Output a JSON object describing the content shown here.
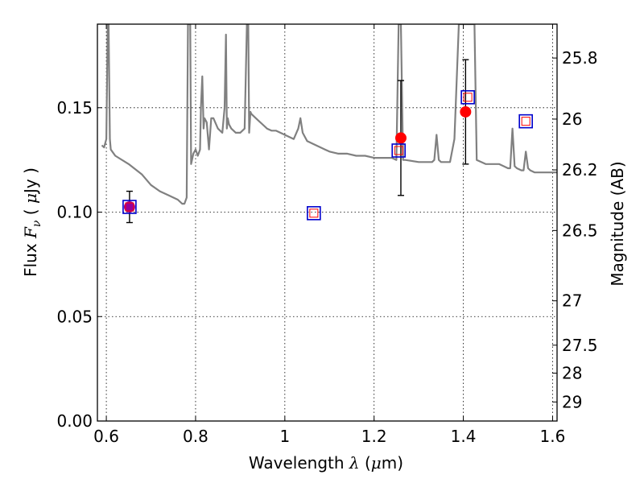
{
  "chart_data": {
    "type": "scatter",
    "xlabel": {
      "prefix": "Wavelength",
      "symbol": "λ",
      "unit_open": "(",
      "unit_mu": "μ",
      "unit_rest": "m)"
    },
    "ylabel": {
      "prefix": "Flux",
      "symbol": "F",
      "subscript": "ν",
      "unit_open": "(",
      "unit_mu": "μ",
      "unit_rest": "Jy )"
    },
    "y2label": "Magnitude (AB)",
    "xlim": [
      0.58,
      1.61
    ],
    "ylim": [
      0.0,
      0.19
    ],
    "grid": true,
    "x_ticks": [
      {
        "value": 0.6,
        "label": "0.6"
      },
      {
        "value": 0.8,
        "label": "0.8"
      },
      {
        "value": 1.0,
        "label": "1"
      },
      {
        "value": 1.2,
        "label": "1.2"
      },
      {
        "value": 1.4,
        "label": "1.4"
      },
      {
        "value": 1.6,
        "label": "1.6"
      }
    ],
    "y_ticks": [
      {
        "value": 0.0,
        "label": "0.00"
      },
      {
        "value": 0.05,
        "label": "0.05"
      },
      {
        "value": 0.1,
        "label": "0.10"
      },
      {
        "value": 0.15,
        "label": "0.15"
      }
    ],
    "y2_ticks": [
      {
        "mag": 25.8,
        "label": "25.8"
      },
      {
        "mag": 26.0,
        "label": "26"
      },
      {
        "mag": 26.2,
        "label": "26.2"
      },
      {
        "mag": 26.5,
        "label": "26.5"
      },
      {
        "mag": 27.0,
        "label": "27"
      },
      {
        "mag": 27.5,
        "label": "27.5"
      },
      {
        "mag": 28.0,
        "label": "28"
      },
      {
        "mag": 29.0,
        "label": "29"
      }
    ],
    "colors": {
      "model": "#808080",
      "observed": "#ff0000",
      "synthetic_edge": "#0000cc",
      "synthetic_inner": "#ff0000",
      "purple": "#990099",
      "errorbar": "#000000"
    },
    "model_spectrum": {
      "name": "",
      "x": [
        0.59,
        0.595,
        0.6,
        0.603,
        0.605,
        0.608,
        0.61,
        0.62,
        0.65,
        0.68,
        0.7,
        0.72,
        0.74,
        0.76,
        0.77,
        0.775,
        0.78,
        0.783,
        0.785,
        0.788,
        0.79,
        0.795,
        0.8,
        0.805,
        0.81,
        0.812,
        0.815,
        0.818,
        0.82,
        0.825,
        0.83,
        0.835,
        0.84,
        0.85,
        0.86,
        0.865,
        0.868,
        0.87,
        0.872,
        0.875,
        0.88,
        0.89,
        0.9,
        0.91,
        0.915,
        0.918,
        0.92,
        0.923,
        0.925,
        0.93,
        0.94,
        0.95,
        0.96,
        0.97,
        0.98,
        0.99,
        1.0,
        1.02,
        1.03,
        1.035,
        1.04,
        1.045,
        1.05,
        1.06,
        1.07,
        1.08,
        1.09,
        1.1,
        1.12,
        1.14,
        1.16,
        1.18,
        1.2,
        1.22,
        1.24,
        1.25,
        1.255,
        1.26,
        1.265,
        1.27,
        1.3,
        1.33,
        1.335,
        1.34,
        1.345,
        1.35,
        1.37,
        1.38,
        1.39,
        1.4,
        1.402,
        1.405,
        1.41,
        1.415,
        1.42,
        1.425,
        1.43,
        1.44,
        1.45,
        1.46,
        1.47,
        1.48,
        1.49,
        1.5,
        1.505,
        1.51,
        1.515,
        1.52,
        1.53,
        1.535,
        1.54,
        1.545,
        1.55,
        1.56,
        1.58,
        1.6,
        1.61
      ],
      "y": [
        0.132,
        0.131,
        0.135,
        0.19,
        0.19,
        0.135,
        0.13,
        0.127,
        0.123,
        0.118,
        0.113,
        0.11,
        0.108,
        0.106,
        0.104,
        0.104,
        0.107,
        0.19,
        0.19,
        0.19,
        0.123,
        0.128,
        0.13,
        0.127,
        0.13,
        0.15,
        0.165,
        0.14,
        0.145,
        0.143,
        0.13,
        0.145,
        0.145,
        0.14,
        0.138,
        0.15,
        0.185,
        0.14,
        0.145,
        0.142,
        0.14,
        0.138,
        0.138,
        0.14,
        0.19,
        0.19,
        0.138,
        0.148,
        0.147,
        0.146,
        0.144,
        0.142,
        0.14,
        0.139,
        0.139,
        0.138,
        0.137,
        0.135,
        0.14,
        0.145,
        0.138,
        0.136,
        0.134,
        0.133,
        0.132,
        0.131,
        0.13,
        0.129,
        0.128,
        0.128,
        0.127,
        0.127,
        0.126,
        0.126,
        0.126,
        0.125,
        0.19,
        0.19,
        0.125,
        0.125,
        0.124,
        0.124,
        0.125,
        0.137,
        0.125,
        0.124,
        0.124,
        0.135,
        0.19,
        0.19,
        0.19,
        0.19,
        0.19,
        0.19,
        0.19,
        0.19,
        0.125,
        0.124,
        0.123,
        0.123,
        0.123,
        0.123,
        0.122,
        0.121,
        0.121,
        0.14,
        0.122,
        0.121,
        0.12,
        0.12,
        0.129,
        0.121,
        0.12,
        0.119,
        0.119,
        0.119,
        0.119
      ]
    },
    "observed_points": {
      "name": "",
      "points": [
        {
          "x": 0.652,
          "y": 0.1025,
          "err": 0.0075
        },
        {
          "x": 1.26,
          "y": 0.1355,
          "err": 0.0275
        },
        {
          "x": 1.405,
          "y": 0.148,
          "err": 0.025
        }
      ]
    },
    "synthetic_points": {
      "name": "",
      "points": [
        {
          "x": 0.652,
          "y": 0.1025
        },
        {
          "x": 1.065,
          "y": 0.0995
        },
        {
          "x": 1.255,
          "y": 0.1295
        },
        {
          "x": 1.41,
          "y": 0.155
        },
        {
          "x": 1.54,
          "y": 0.1435
        }
      ]
    }
  }
}
